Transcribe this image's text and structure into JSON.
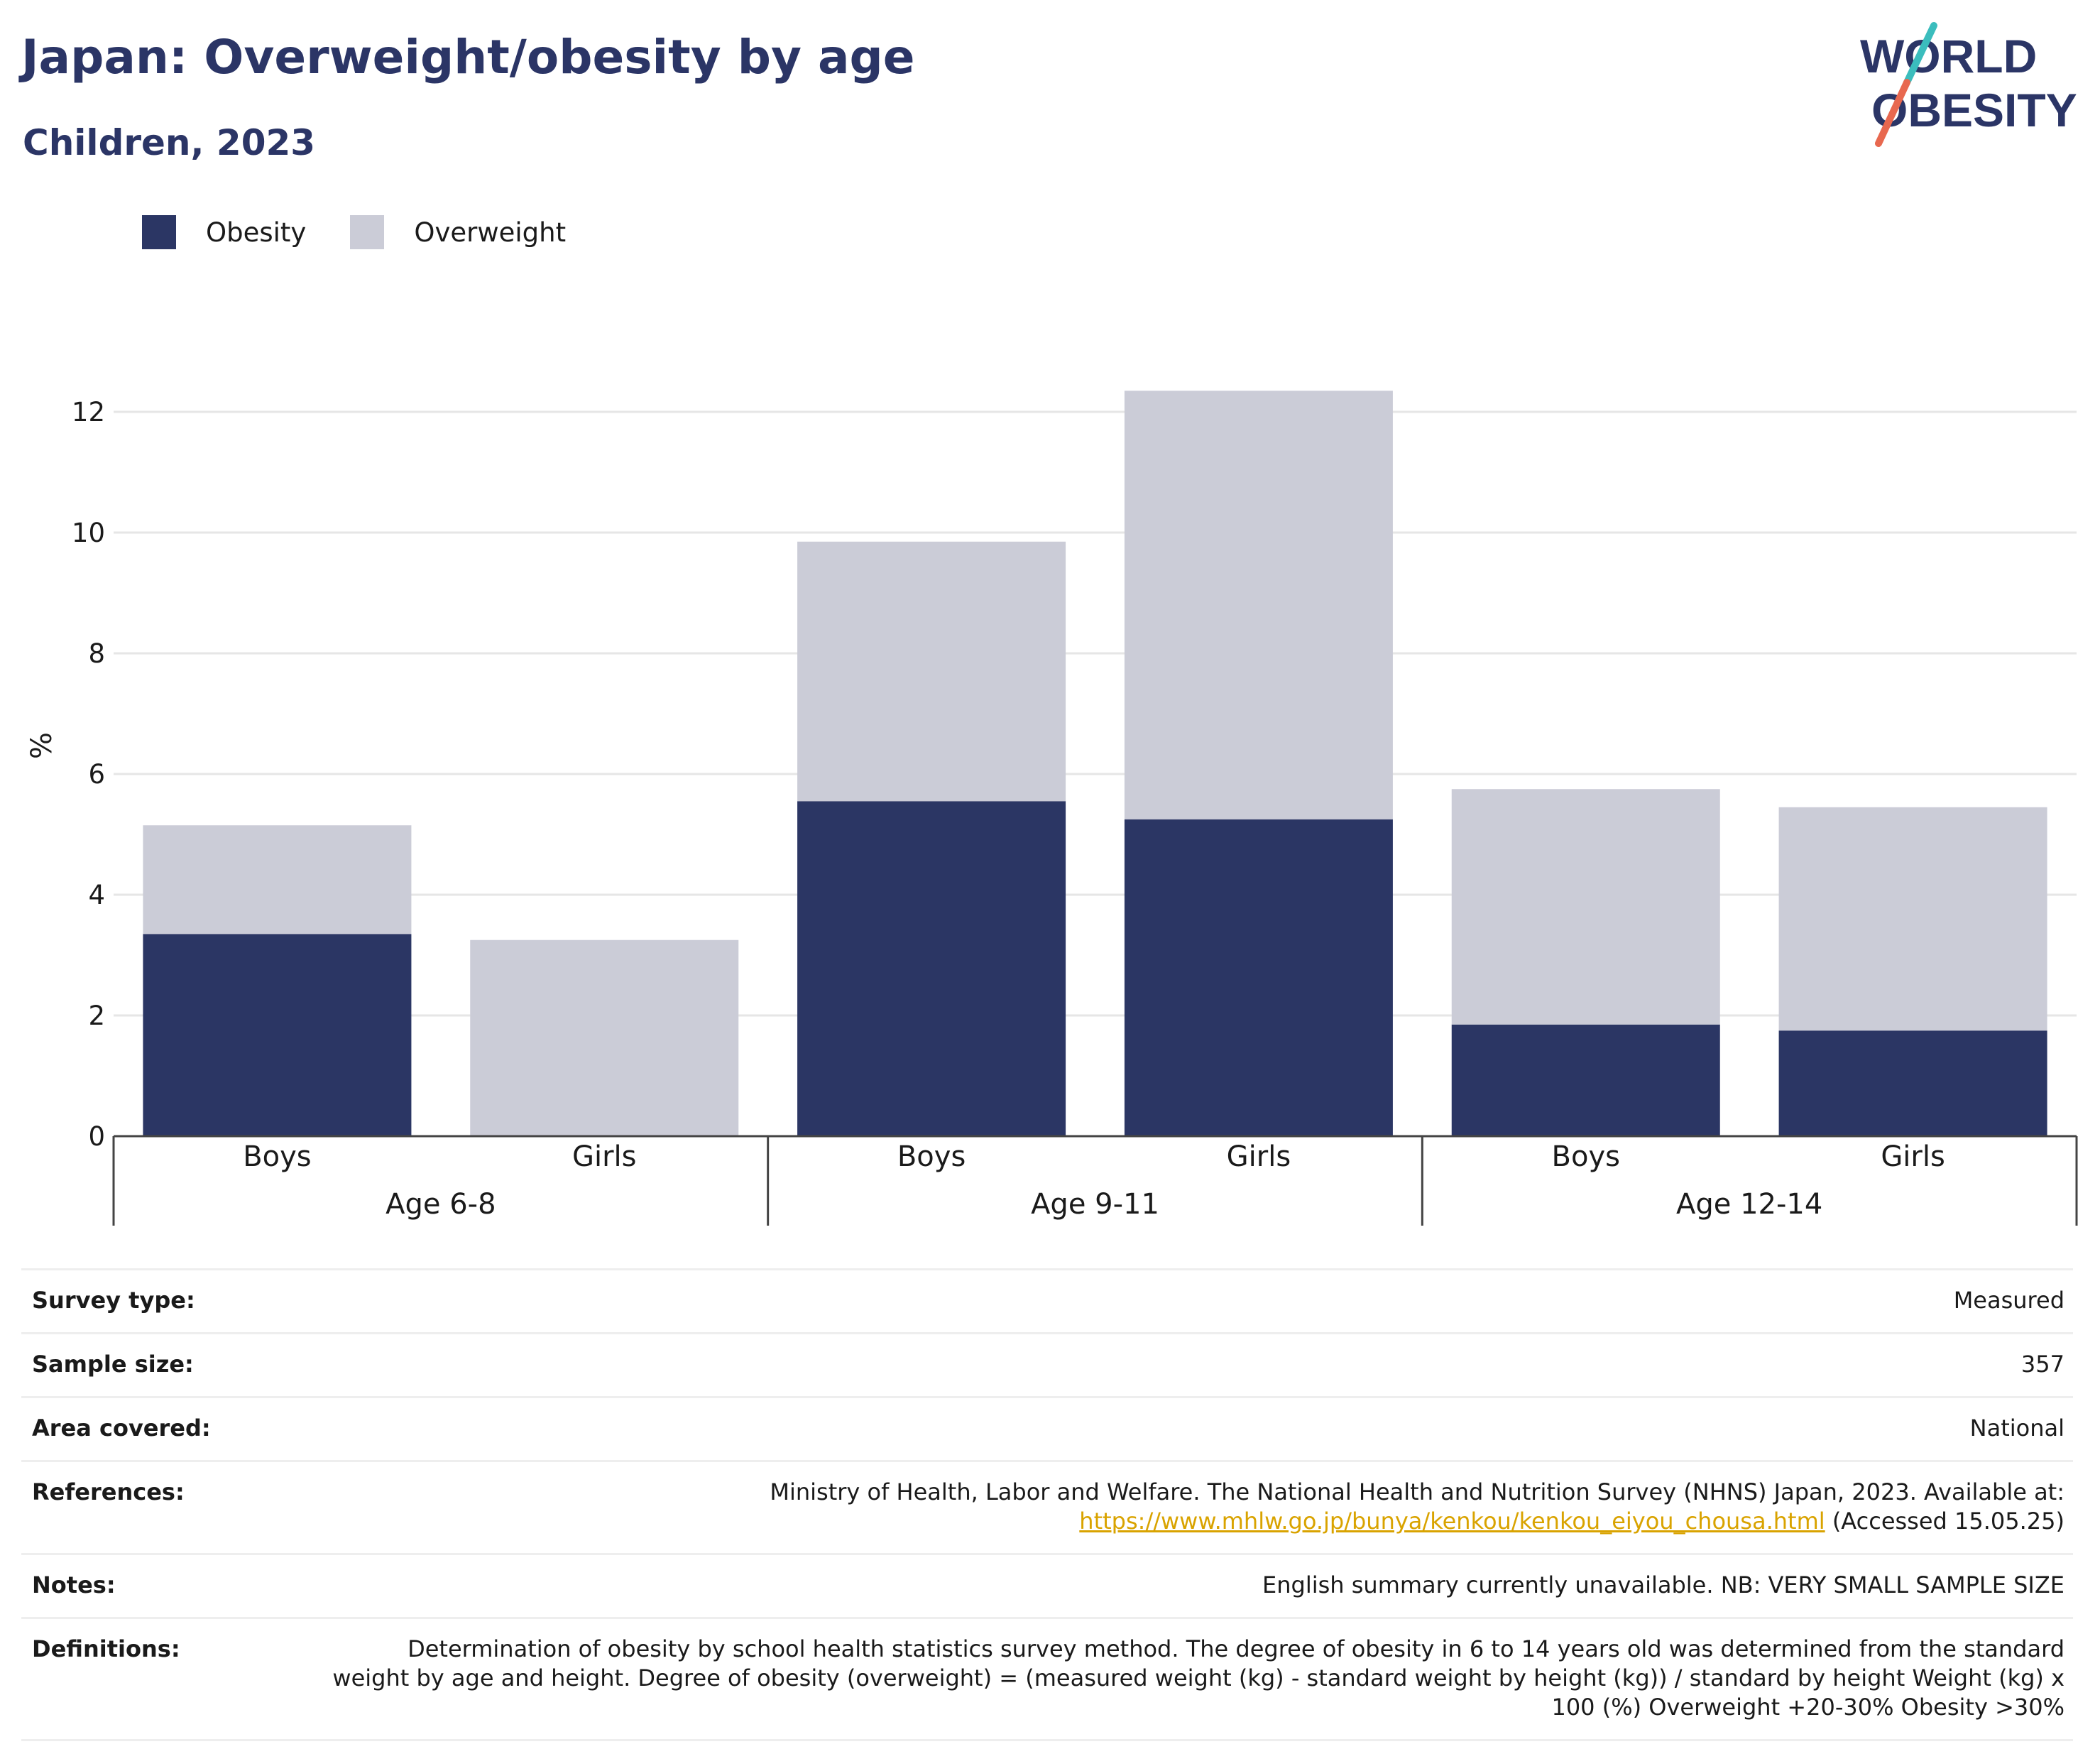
{
  "header": {
    "title": "Japan: Overweight/obesity by age",
    "subtitle": "Children, 2023",
    "logo_line1": "WORLD",
    "logo_line2": "OBESITY"
  },
  "colors": {
    "obesity": "#2b3664",
    "overweight": "#cbccd7",
    "title": "#2b3566",
    "link": "#d9a300",
    "logo_teal": "#3bbdbd",
    "logo_red": "#e8684f"
  },
  "legend": [
    {
      "label": "Obesity",
      "color": "#2b3664"
    },
    {
      "label": "Overweight",
      "color": "#cbccd7"
    }
  ],
  "chart_data": {
    "type": "bar",
    "stacked": true,
    "ylabel": "%",
    "ylim": [
      0,
      13
    ],
    "yticks": [
      0,
      2,
      4,
      6,
      8,
      10,
      12
    ],
    "grid": true,
    "legend_placement": "top-left",
    "groups": [
      {
        "label": "Age 6-8",
        "categories": [
          "Boys",
          "Girls"
        ]
      },
      {
        "label": "Age 9-11",
        "categories": [
          "Boys",
          "Girls"
        ]
      },
      {
        "label": "Age 12-14",
        "categories": [
          "Boys",
          "Girls"
        ]
      }
    ],
    "categories": [
      "Boys",
      "Girls",
      "Boys",
      "Girls",
      "Boys",
      "Girls"
    ],
    "series": [
      {
        "name": "Obesity",
        "values": [
          3.35,
          0,
          5.55,
          5.25,
          1.85,
          1.75
        ]
      },
      {
        "name": "Overweight",
        "values": [
          1.8,
          3.25,
          4.3,
          7.1,
          3.9,
          3.7
        ]
      }
    ]
  },
  "info": {
    "survey_type_label": "Survey type:",
    "survey_type": "Measured",
    "sample_size_label": "Sample size:",
    "sample_size": "357",
    "area_label": "Area covered:",
    "area": "National",
    "references_label": "References:",
    "references_text": "Ministry of Health, Labor and Welfare. The National Health and Nutrition Survey (NHNS) Japan, 2023. Available at:",
    "references_link": "https://www.mhlw.go.jp/bunya/kenkou/kenkou_eiyou_chousa.html",
    "references_accessed": "(Accessed 15.05.25)",
    "notes_label": "Notes:",
    "notes": "English summary currently unavailable. NB: VERY SMALL SAMPLE SIZE",
    "definitions_label": "Definitions:",
    "definitions": "Determination of obesity by school health statistics survey method. The degree of obesity in 6 to 14 years old was determined from the standard weight by age and height. Degree of obesity (overweight) = (measured weight (kg) - standard weight by height (kg)) / standard by height Weight (kg) x 100 (%) Overweight +20-30% Obesity >30%"
  }
}
